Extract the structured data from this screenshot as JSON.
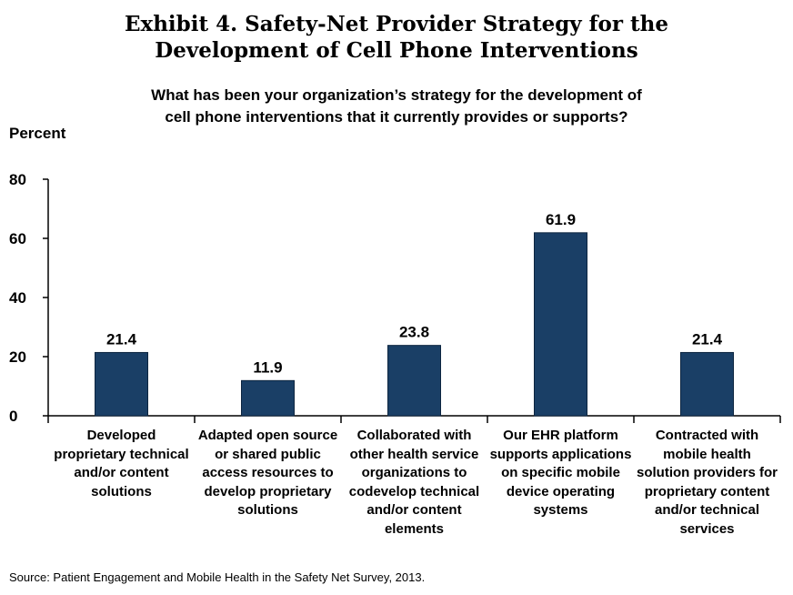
{
  "chart_data": {
    "type": "bar",
    "title": "Exhibit 4. Safety-Net Provider Strategy for the Development of Cell Phone Interventions",
    "title_lines": [
      "Exhibit 4. Safety-Net Provider Strategy for the",
      "Development of Cell Phone Interventions"
    ],
    "subtitle_lines": [
      "What has been your organization’s strategy for the development of",
      "cell phone interventions that it currently provides or supports?"
    ],
    "ylabel": "Percent",
    "ylim": [
      0,
      80
    ],
    "yticks": [
      0,
      20,
      40,
      60,
      80
    ],
    "categories": [
      "Developed proprietary technical and/or content solutions",
      "Adapted open source or shared public access resources to develop proprietary solutions",
      "Collaborated with other health service organizations to codevelop technical and/or content elements",
      "Our EHR platform supports applications on specific mobile device operating systems",
      "Contracted with mobile health solution providers for proprietary content and/or technical services"
    ],
    "category_lines": [
      [
        "Developed",
        "proprietary technical",
        "and/or content",
        "solutions"
      ],
      [
        "Adapted open source",
        "or shared public",
        "access resources to",
        "develop proprietary",
        "solutions"
      ],
      [
        "Collaborated with",
        "other health service",
        "organizations to",
        "codevelop technical",
        "and/or content",
        "elements"
      ],
      [
        "Our EHR platform",
        "supports applications",
        "on specific mobile",
        "device operating",
        "systems"
      ],
      [
        "Contracted with",
        "mobile health",
        "solution providers for",
        "proprietary content",
        "and/or technical",
        "services"
      ]
    ],
    "values": [
      21.4,
      11.9,
      23.8,
      61.9,
      21.4
    ],
    "value_labels": [
      "21.4",
      "11.9",
      "23.8",
      "61.9",
      "21.4"
    ],
    "bar_color": "#1a3f66",
    "grid": false,
    "source": "Source: Patient Engagement and Mobile Health in the Safety Net Survey, 2013."
  }
}
